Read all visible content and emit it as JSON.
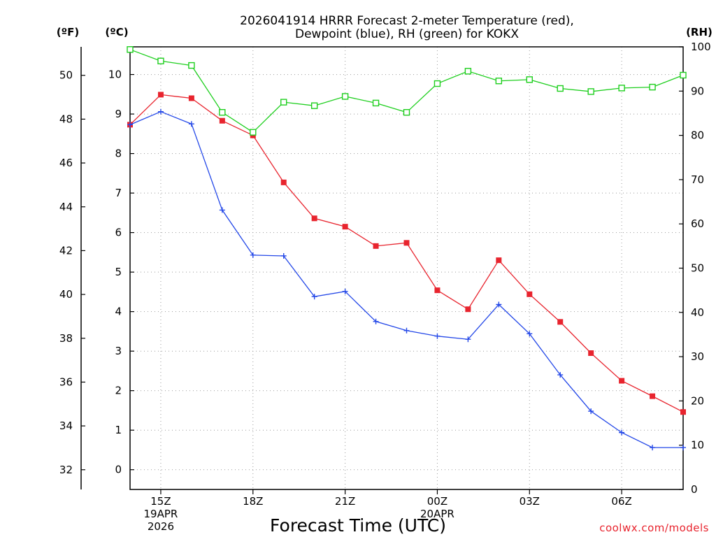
{
  "chart_data": {
    "type": "line",
    "title": [
      "2026041914 HRRR Forecast 2-meter Temperature (red),",
      "Dewpoint (blue), RH (green) for KOKX"
    ],
    "xlabel": "Forecast Time (UTC)",
    "credit": "coolwx.com/models",
    "left_axis_f": {
      "label": "(ºF)",
      "ylim": [
        31.1,
        51.3
      ],
      "ticks": [
        32,
        34,
        36,
        38,
        40,
        42,
        44,
        46,
        48,
        50
      ]
    },
    "left_axis_c": {
      "label": "(ºC)",
      "ylim": [
        -0.5,
        10.7
      ],
      "ticks": [
        0,
        1,
        2,
        3,
        4,
        5,
        6,
        7,
        8,
        9,
        10
      ]
    },
    "right_axis": {
      "label": "(RH)",
      "ylim": [
        0,
        100
      ],
      "ticks": [
        0,
        10,
        20,
        30,
        40,
        50,
        60,
        70,
        80,
        90,
        100
      ]
    },
    "x_hours": [
      14,
      15,
      16,
      17,
      18,
      19,
      20,
      21,
      22,
      23,
      24,
      25,
      26,
      27,
      28,
      29,
      30,
      31,
      32
    ],
    "xlim": [
      14,
      32
    ],
    "x_ticks": [
      {
        "hour": 15,
        "lines": [
          "15Z",
          "19APR",
          "2026"
        ]
      },
      {
        "hour": 18,
        "lines": [
          "18Z"
        ]
      },
      {
        "hour": 21,
        "lines": [
          "21Z"
        ]
      },
      {
        "hour": 24,
        "lines": [
          "00Z",
          "20APR"
        ]
      },
      {
        "hour": 27,
        "lines": [
          "03Z"
        ]
      },
      {
        "hour": 30,
        "lines": [
          "06Z"
        ]
      }
    ],
    "series": [
      {
        "name": "2-meter Temperature",
        "unit": "C",
        "color": "#e8242e",
        "marker": "filled-square",
        "values": [
          8.73,
          9.49,
          9.4,
          8.83,
          8.46,
          7.27,
          6.36,
          6.15,
          5.66,
          5.74,
          4.54,
          4.06,
          5.3,
          4.44,
          3.74,
          2.95,
          2.25,
          1.86,
          1.46
        ]
      },
      {
        "name": "Dewpoint",
        "unit": "C",
        "color": "#2448e8",
        "marker": "plus",
        "values": [
          8.73,
          9.06,
          8.75,
          6.57,
          5.43,
          5.41,
          4.38,
          4.51,
          3.75,
          3.52,
          3.38,
          3.3,
          4.18,
          3.44,
          2.4,
          1.48,
          0.94,
          0.56,
          0.56
        ]
      },
      {
        "name": "RH",
        "unit": "%",
        "color": "#1ecf1e",
        "marker": "open-square",
        "values": [
          99.4,
          96.8,
          95.8,
          85.2,
          80.7,
          87.5,
          86.7,
          88.8,
          87.3,
          85.2,
          91.7,
          94.5,
          92.3,
          92.6,
          90.6,
          89.9,
          90.7,
          90.9,
          93.6
        ]
      }
    ]
  }
}
